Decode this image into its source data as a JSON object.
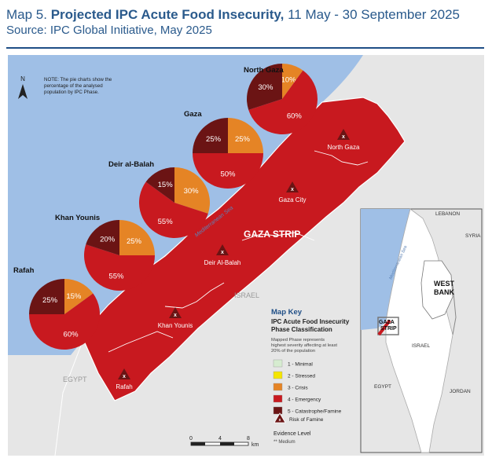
{
  "header": {
    "map_number": "Map 5.",
    "title_bold": "Projected IPC Acute Food Insecurity,",
    "title_dates": "11 May - 30 September 2025",
    "source": "Source: IPC Global Initiative, May 2025"
  },
  "note": {
    "north_arrow": "N",
    "line1": "NOTE: The pie charts show the",
    "line2": "percentage of the analysed",
    "line3": "population by IPC Phase."
  },
  "labels": {
    "gaza_strip": "GAZA STRIP",
    "sea": "Mediterranean Sea",
    "israel": "ISRAEL",
    "egypt": "EGYPT"
  },
  "famine_markers": [
    {
      "name": "North Gaza",
      "symbol": "x"
    },
    {
      "name": "Gaza City",
      "symbol": "x"
    },
    {
      "name": "Deir Al-Balah",
      "symbol": "x"
    },
    {
      "name": "Khan Younis",
      "symbol": "x"
    },
    {
      "name": "Rafah",
      "symbol": "x"
    }
  ],
  "colors": {
    "sea": "#9fbfe6",
    "land": "#e6e6e6",
    "border": "#ffffff",
    "phase1": "#d6ecd0",
    "phase2": "#f4e500",
    "phase3": "#e58425",
    "phase4": "#c8191f",
    "phase5": "#6b1414"
  },
  "chart_data": {
    "type": "pie",
    "units": "%",
    "series": [
      {
        "name": "North Gaza",
        "values": [
          {
            "phase": 5,
            "value": 30
          },
          {
            "phase": 4,
            "value": 60
          },
          {
            "phase": 3,
            "value": 10
          }
        ]
      },
      {
        "name": "Gaza",
        "values": [
          {
            "phase": 5,
            "value": 25
          },
          {
            "phase": 4,
            "value": 50
          },
          {
            "phase": 3,
            "value": 25
          }
        ]
      },
      {
        "name": "Deir al-Balah",
        "values": [
          {
            "phase": 5,
            "value": 15
          },
          {
            "phase": 4,
            "value": 55
          },
          {
            "phase": 3,
            "value": 30
          }
        ]
      },
      {
        "name": "Khan Younis",
        "values": [
          {
            "phase": 5,
            "value": 20
          },
          {
            "phase": 4,
            "value": 55
          },
          {
            "phase": 3,
            "value": 25
          }
        ]
      },
      {
        "name": "Rafah",
        "values": [
          {
            "phase": 5,
            "value": 25
          },
          {
            "phase": 4,
            "value": 60
          },
          {
            "phase": 3,
            "value": 15
          }
        ]
      }
    ]
  },
  "legend": {
    "heading": "Map Key",
    "subheading1": "IPC Acute Food Insecurity",
    "subheading2": "Phase Classification",
    "desc1": "Mapped Phase represents",
    "desc2": "highest severity affecting at least",
    "desc3": "20% of the population",
    "items": [
      {
        "label": "1 - Minimal",
        "color": "#d6ecd0"
      },
      {
        "label": "2 - Stressed",
        "color": "#f4e500"
      },
      {
        "label": "3 - Crisis",
        "color": "#e58425"
      },
      {
        "label": "4 - Emergency",
        "color": "#c8191f"
      },
      {
        "label": "5 - Catastrophe/Famine",
        "color": "#6b1414"
      }
    ],
    "risk_label": "Risk of Famine",
    "evidence_title": "Evidence Level",
    "evidence_value": "** Medium"
  },
  "scale": {
    "ticks": [
      "0",
      "4",
      "8"
    ],
    "unit": "km"
  },
  "inset": {
    "labels": [
      "LEBANON",
      "SYRIA",
      "WEST BANK",
      "GAZA STRIP",
      "ISRAEL",
      "EGYPT",
      "JORDAN",
      "Mediterranean Sea"
    ]
  }
}
